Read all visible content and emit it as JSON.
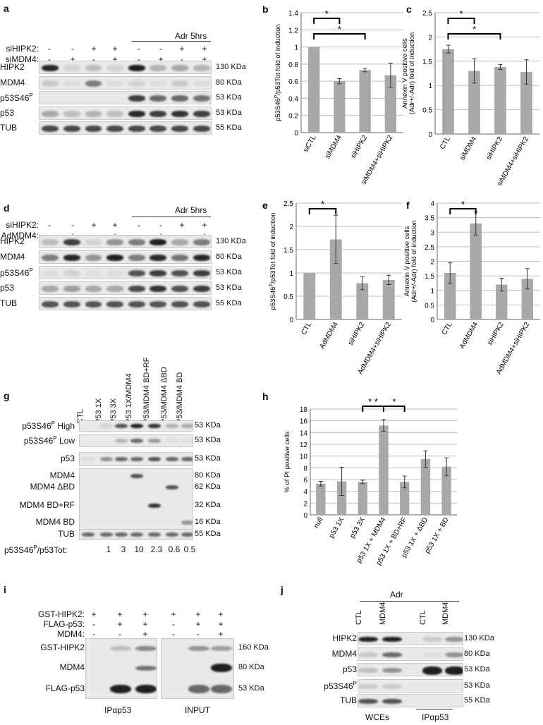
{
  "panels": {
    "a": {
      "label": "a",
      "header": "Adr 5hrs",
      "treat_rows": [
        {
          "label": "siHIPK2:",
          "signs": [
            "-",
            "-",
            "+",
            "+",
            "-",
            "-",
            "+",
            "+"
          ]
        },
        {
          "label": "siMDM4:",
          "signs": [
            "-",
            "+",
            "-",
            "+",
            "-",
            "+",
            "-",
            "+"
          ]
        }
      ],
      "blot_rows": [
        {
          "label": "HIPK2",
          "mw": "130 KDa"
        },
        {
          "label": "MDM4",
          "mw": "80 KDa"
        },
        {
          "label": "p53S46",
          "sup": "P",
          "mw": "53 KDa"
        },
        {
          "label": "p53",
          "mw": "53 KDa"
        },
        {
          "label": "TUB",
          "mw": "55 KDa"
        }
      ]
    },
    "d": {
      "label": "d",
      "header": "Adr 5hrs",
      "treat_rows": [
        {
          "label": "siHIPK2:",
          "signs": [
            "-",
            "-",
            "+",
            "+",
            "-",
            "-",
            "+",
            "+"
          ]
        },
        {
          "label": "AdMDM4:",
          "signs": [
            "-",
            "+",
            "-",
            "+",
            "-",
            "+",
            "-",
            "+"
          ]
        }
      ],
      "blot_rows": [
        {
          "label": "HIPK2",
          "mw": "130 KDa"
        },
        {
          "label": "MDM4",
          "mw": "80 KDa"
        },
        {
          "label": "p53S46",
          "sup": "P",
          "mw": "53 KDa"
        },
        {
          "label": "p53",
          "mw": "53 KDa"
        },
        {
          "label": "TUB",
          "mw": "55 KDa"
        }
      ]
    },
    "g": {
      "label": "g",
      "lanes": [
        "CTL",
        "P53 1X",
        "P53 3X",
        "P53 1X/MDM4",
        "P53/MDM4 BD+RF",
        "P53/MDM4 ΔBD",
        "P53/MDM4 BD"
      ],
      "rows": [
        {
          "label": "p53S46",
          "sup": "P",
          "suffix": " High",
          "mw": "53 KDa"
        },
        {
          "label": "p53S46",
          "sup": "P",
          "suffix": " Low",
          "mw": "53 KDa"
        },
        {
          "label": "p53",
          "mw": "53 KDa"
        },
        {
          "label": "MDM4",
          "mw": "80 KDa"
        },
        {
          "label": "MDM4 ΔBD",
          "mw": "62 KDa"
        },
        {
          "label": "MDM4 BD+RF",
          "mw": "32 KDa"
        },
        {
          "label": "MDM4 BD",
          "mw": "16 KDa"
        },
        {
          "label": "TUB",
          "mw": "55 KDa"
        }
      ],
      "ratio_label": "p53S46",
      "ratio_sup": "P",
      "ratio_suffix": "/p53Tot:",
      "ratios": [
        "1",
        "3",
        "10",
        "2.3",
        "0.6",
        "0.5"
      ]
    },
    "i": {
      "label": "i",
      "treat_rows": [
        {
          "label": "GST-HIPK2:",
          "signs": [
            "+",
            "+",
            "+",
            "+",
            "+",
            "+"
          ]
        },
        {
          "label": "FLAG-p53:",
          "signs": [
            "-",
            "+",
            "+",
            "-",
            "+",
            "+"
          ]
        },
        {
          "label": "MDM4:",
          "signs": [
            "-",
            "-",
            "+",
            "-",
            "-",
            "+"
          ]
        }
      ],
      "blot_rows": [
        {
          "label": "GST-HIPK2",
          "mw": "160 KDa"
        },
        {
          "label": "MDM4",
          "mw": "80 KDa"
        },
        {
          "label": "FLAG-p53",
          "mw": "53 KDa"
        }
      ],
      "footer_left": "IPαp53",
      "footer_right": "INPUT"
    },
    "j": {
      "label": "j",
      "header": "Adr",
      "lanes": [
        "CTL",
        "MDM4",
        "CTL",
        "MDM4"
      ],
      "blot_rows": [
        {
          "label": "HIPK2",
          "mw": "130 KDa"
        },
        {
          "label": "MDM4",
          "mw": "80 KDa"
        },
        {
          "label": "p53",
          "mw": "53 KDa"
        },
        {
          "label": "p53S46",
          "sup": "P",
          "mw": "53 KDa"
        },
        {
          "label": "TUB",
          "mw": "55 KDa"
        }
      ],
      "footer_left": "WCEs",
      "footer_right": "IPαp53"
    }
  },
  "chart_data": [
    {
      "panel": "b",
      "type": "bar",
      "categories": [
        "siCTL",
        "siMDM4",
        "siHIPK2",
        "siMDM4+siHIPK2"
      ],
      "values": [
        1.0,
        0.6,
        0.73,
        0.67
      ],
      "errors": [
        0.0,
        0.03,
        0.02,
        0.14
      ],
      "ylabel": "p53S46P/p53Tot  fold of induction",
      "ylim": [
        0,
        1.4
      ],
      "yticks": [
        "0",
        "0.2",
        "0.4",
        "0.6",
        "0.8",
        "1",
        "1.2",
        "1.4"
      ],
      "brackets": [
        [
          0,
          1
        ],
        [
          0,
          2
        ]
      ],
      "bracket_labels": [
        "*",
        "*"
      ],
      "color": "#a8a8a8"
    },
    {
      "panel": "c",
      "type": "bar",
      "categories": [
        "CTL",
        "siMDM4",
        "siHIPK2",
        "siMDM4+siHIPK2"
      ],
      "values": [
        1.75,
        1.3,
        1.38,
        1.28
      ],
      "errors": [
        0.08,
        0.25,
        0.05,
        0.25
      ],
      "ylabel": "Annexin V positive cells (Adr+/-Adr) fold of induction",
      "ylim": [
        0,
        2.5
      ],
      "yticks": [
        "0",
        "0.5",
        "1",
        "1.5",
        "2",
        "2.5"
      ],
      "brackets": [
        [
          0,
          1
        ],
        [
          0,
          2
        ]
      ],
      "bracket_labels": [
        "*",
        "*"
      ],
      "color": "#a8a8a8"
    },
    {
      "panel": "e",
      "type": "bar",
      "categories": [
        "CTL",
        "AdMDM4",
        "siHIPK2",
        "AdMDM4+siHIPK2"
      ],
      "values": [
        1.0,
        1.72,
        0.78,
        0.85
      ],
      "errors": [
        0.0,
        0.52,
        0.14,
        0.1
      ],
      "ylabel": "p53S46P/p53Tot fold of induction",
      "ylim": [
        0,
        2.5
      ],
      "yticks": [
        "0",
        "0.5",
        "1",
        "1.5",
        "2",
        "2.5"
      ],
      "brackets": [
        [
          0,
          1
        ]
      ],
      "bracket_labels": [
        "*"
      ],
      "color": "#a8a8a8"
    },
    {
      "panel": "f",
      "type": "bar",
      "categories": [
        "CTL",
        "AdMDM4",
        "siHIPK2",
        "AdMDM4+siHIPK2"
      ],
      "values": [
        1.6,
        3.3,
        1.2,
        1.4
      ],
      "errors": [
        0.35,
        0.4,
        0.22,
        0.35
      ],
      "ylabel": "Annexin V positive cells (Adr+/-Adr) fold of induction",
      "ylim": [
        0,
        4
      ],
      "yticks": [
        "0",
        "0.5",
        "1",
        "1.5",
        "2",
        "2.5",
        "3",
        "3.5",
        "4"
      ],
      "brackets": [
        [
          0,
          1
        ]
      ],
      "bracket_labels": [
        "*"
      ],
      "color": "#a8a8a8"
    },
    {
      "panel": "h",
      "type": "bar",
      "categories": [
        "null",
        "p53 1X",
        "p53 3X",
        "p53 1X + MDM4",
        "p53 1X + BD+RF",
        "p53 1X + ΔBD",
        "p53 1X + BD"
      ],
      "values": [
        5.3,
        5.7,
        5.6,
        15.2,
        5.6,
        9.5,
        8.2
      ],
      "errors": [
        0.4,
        2.4,
        0.3,
        1.0,
        1.0,
        1.4,
        1.5
      ],
      "ylabel": "% of PI positive cells",
      "ylim": [
        0,
        18
      ],
      "yticks": [
        "0",
        "2",
        "4",
        "6",
        "8",
        "10",
        "12",
        "14",
        "16",
        "18"
      ],
      "brackets": [
        [
          2,
          3
        ],
        [
          3,
          4
        ]
      ],
      "bracket_labels": [
        "* *",
        "*"
      ],
      "color": "#a8a8a8"
    }
  ]
}
